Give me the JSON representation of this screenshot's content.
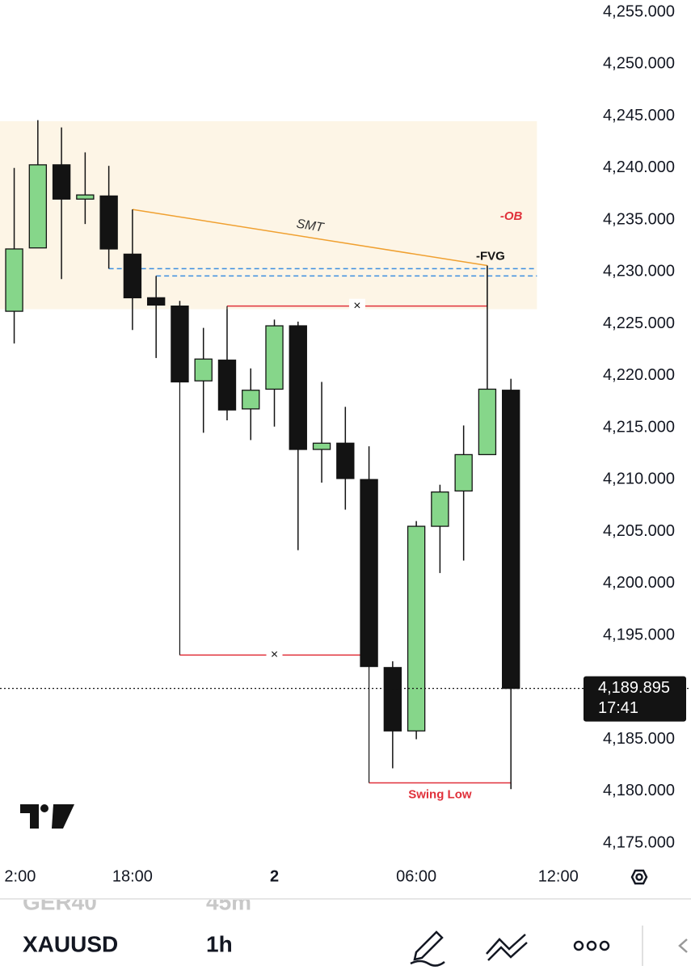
{
  "chart_data": {
    "type": "candlestick",
    "open": [
      4226.2,
      4232.3,
      4240.3,
      4237.0,
      4237.3,
      4231.7,
      4227.5,
      4226.7,
      4219.5,
      4221.5,
      4216.8,
      4218.7,
      4224.8,
      4212.9,
      4213.5,
      4210.0,
      4191.9,
      4185.8,
      4205.5,
      4208.9,
      4212.4,
      4218.6
    ],
    "high": [
      4240.0,
      4244.6,
      4243.9,
      4241.5,
      4240.2,
      4236.0,
      4229.6,
      4227.2,
      4224.6,
      4226.4,
      4220.7,
      4225.4,
      4225.2,
      4219.4,
      4217.0,
      4213.2,
      4192.5,
      4206.0,
      4209.5,
      4215.2,
      4230.6,
      4219.7
    ],
    "low": [
      4223.1,
      4232.3,
      4229.3,
      4234.6,
      4230.3,
      4224.4,
      4221.7,
      4219.4,
      4214.5,
      4215.7,
      4213.8,
      4215.1,
      4203.2,
      4209.7,
      4207.1,
      4192.0,
      4182.2,
      4185.0,
      4201.0,
      4202.2,
      4212.4,
      4180.2
    ],
    "close": [
      4232.2,
      4240.3,
      4237.0,
      4237.4,
      4232.2,
      4227.5,
      4226.8,
      4219.4,
      4221.6,
      4216.7,
      4218.6,
      4224.8,
      4212.9,
      4213.5,
      4210.1,
      4192.0,
      4185.8,
      4205.5,
      4208.8,
      4212.4,
      4218.7,
      4189.895
    ],
    "up_color": "#86d68a",
    "down_color": "#131313",
    "xlim": [
      -0.6,
      24
    ],
    "xticks": [
      {
        "value": 0.25,
        "label": "2:00"
      },
      {
        "value": 5,
        "label": "18:00"
      },
      {
        "value": 11,
        "label": "2"
      },
      {
        "value": 17,
        "label": "06:00"
      },
      {
        "value": 23,
        "label": "12:00"
      }
    ],
    "ylim": [
      4175,
      4255
    ],
    "yticks": [
      {
        "value": 4175,
        "label": "4,175.000"
      },
      {
        "value": 4180,
        "label": "4,180.000"
      },
      {
        "value": 4185,
        "label": "4,185.000"
      },
      {
        "value": 4190,
        "label": "4,190.000"
      },
      {
        "value": 4195,
        "label": "4,195.000"
      },
      {
        "value": 4200,
        "label": "4,200.000"
      },
      {
        "value": 4205,
        "label": "4,205.000"
      },
      {
        "value": 4210,
        "label": "4,210.000"
      },
      {
        "value": 4215,
        "label": "4,215.000"
      },
      {
        "value": 4220,
        "label": "4,220.000"
      },
      {
        "value": 4225,
        "label": "4,225.000"
      },
      {
        "value": 4230,
        "label": "4,230.000"
      },
      {
        "value": 4235,
        "label": "4,235.000"
      },
      {
        "value": 4240,
        "label": "4,240.000"
      },
      {
        "value": 4245,
        "label": "4,245.000"
      },
      {
        "value": 4250,
        "label": "4,250.000"
      },
      {
        "value": 4255,
        "label": "4,255.000"
      }
    ],
    "zones": [
      {
        "label": "-OB",
        "x": [
          -0.6,
          22.1
        ],
        "y": [
          4226.4,
          4244.5
        ],
        "color": "#fdf5e6",
        "label_color": "#e0303a"
      }
    ],
    "lines": [
      {
        "label": "SMT",
        "x": [
          5,
          20
        ],
        "y": [
          4236.0,
          4230.6
        ],
        "color": "#f0a030",
        "style": "solid",
        "label_pos": "above"
      },
      {
        "label": "-FVG",
        "x": [
          4,
          22.1
        ],
        "y": [
          4230.3,
          4230.3
        ],
        "color": "#3d8fe0",
        "style": "dashed",
        "label_pos": "end"
      },
      {
        "x": [
          6,
          22.1
        ],
        "y": [
          4229.6,
          4229.6
        ],
        "color": "#3d8fe0",
        "style": "dashed"
      },
      {
        "label": "×",
        "x": [
          9,
          20
        ],
        "y": [
          4226.7,
          4226.7
        ],
        "color": "#e0303a",
        "style": "solid",
        "label_pos": "on"
      },
      {
        "label": "×",
        "x": [
          7,
          15
        ],
        "y": [
          4193.1,
          4193.1
        ],
        "color": "#e0303a",
        "style": "solid",
        "label_pos": "on"
      },
      {
        "label": "Swing Low",
        "x": [
          15,
          21
        ],
        "y": [
          4180.8,
          4180.8
        ],
        "color": "#e0303a",
        "style": "solid",
        "label_pos": "below"
      }
    ],
    "last_price": {
      "value": 4189.895,
      "label": "4,189.895"
    },
    "countdown": "17:41"
  },
  "toolbar": {
    "prev_symbol": "GER40",
    "prev_interval": "45m",
    "symbol": "XAUUSD",
    "interval": "1h"
  }
}
